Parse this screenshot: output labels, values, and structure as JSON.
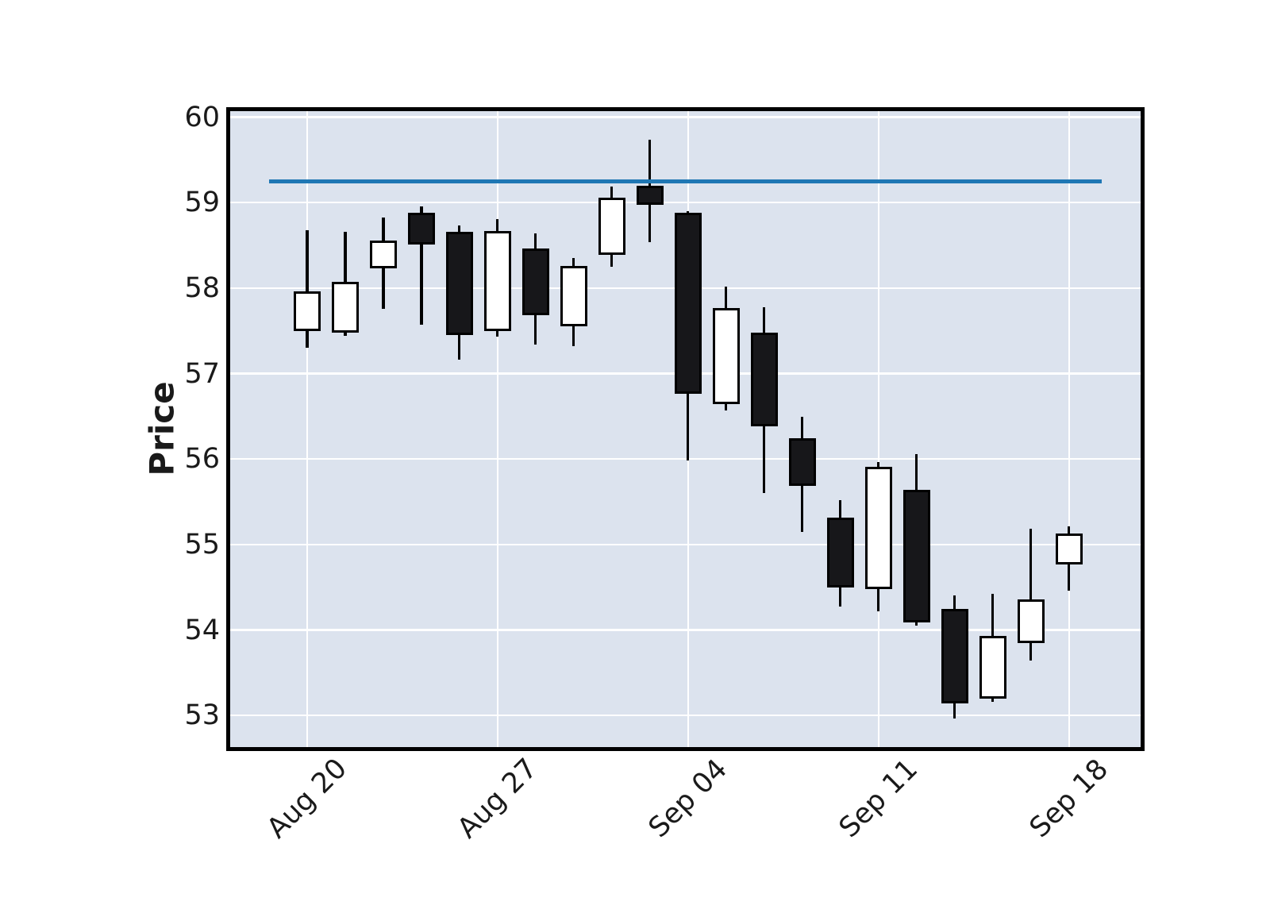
{
  "chart_data": {
    "type": "candlestick",
    "title": "",
    "xlabel": "",
    "ylabel": "Price",
    "grid": true,
    "legend": false,
    "y_ticks": [
      53,
      54,
      55,
      56,
      57,
      58,
      59,
      60
    ],
    "ylim": [
      52.63,
      60.07
    ],
    "xlim_index": [
      -2.02,
      21.88
    ],
    "x_tick_labels": [
      "Aug 20",
      "Aug 27",
      "Sep 04",
      "Sep 11",
      "Sep 18"
    ],
    "x_tick_indices": [
      0,
      5,
      10,
      15,
      20
    ],
    "candles": [
      {
        "date": "Aug 20",
        "open": 57.5,
        "high": 58.68,
        "low": 57.3,
        "close": 57.96
      },
      {
        "date": "Aug 21",
        "open": 57.48,
        "high": 58.66,
        "low": 57.44,
        "close": 58.07
      },
      {
        "date": "Aug 22",
        "open": 58.23,
        "high": 58.83,
        "low": 57.76,
        "close": 58.56
      },
      {
        "date": "Aug 23",
        "open": 58.88,
        "high": 58.96,
        "low": 57.57,
        "close": 58.51
      },
      {
        "date": "Aug 24",
        "open": 58.66,
        "high": 58.73,
        "low": 57.16,
        "close": 57.45
      },
      {
        "date": "Aug 27",
        "open": 57.5,
        "high": 58.81,
        "low": 57.43,
        "close": 58.67
      },
      {
        "date": "Aug 28",
        "open": 58.46,
        "high": 58.64,
        "low": 57.34,
        "close": 57.68
      },
      {
        "date": "Aug 29",
        "open": 57.55,
        "high": 58.35,
        "low": 57.32,
        "close": 58.26
      },
      {
        "date": "Aug 30",
        "open": 58.39,
        "high": 59.19,
        "low": 58.25,
        "close": 59.06
      },
      {
        "date": "Aug 31",
        "open": 59.2,
        "high": 59.74,
        "low": 58.54,
        "close": 58.97
      },
      {
        "date": "Sep 04",
        "open": 58.88,
        "high": 58.9,
        "low": 55.98,
        "close": 56.76
      },
      {
        "date": "Sep 05",
        "open": 56.64,
        "high": 58.02,
        "low": 56.57,
        "close": 57.77
      },
      {
        "date": "Sep 06",
        "open": 57.48,
        "high": 57.78,
        "low": 55.6,
        "close": 56.38
      },
      {
        "date": "Sep 07",
        "open": 56.24,
        "high": 56.49,
        "low": 55.15,
        "close": 55.69
      },
      {
        "date": "Sep 10",
        "open": 55.31,
        "high": 55.52,
        "low": 54.27,
        "close": 54.5
      },
      {
        "date": "Sep 11",
        "open": 54.48,
        "high": 55.96,
        "low": 54.22,
        "close": 55.91
      },
      {
        "date": "Sep 12",
        "open": 55.64,
        "high": 56.06,
        "low": 54.05,
        "close": 54.09
      },
      {
        "date": "Sep 13",
        "open": 54.25,
        "high": 54.4,
        "low": 52.96,
        "close": 53.14
      },
      {
        "date": "Sep 14",
        "open": 53.2,
        "high": 54.42,
        "low": 53.16,
        "close": 53.93
      },
      {
        "date": "Sep 17",
        "open": 53.85,
        "high": 55.18,
        "low": 53.64,
        "close": 54.36
      },
      {
        "date": "Sep 18",
        "open": 54.77,
        "high": 55.21,
        "low": 54.46,
        "close": 55.13
      }
    ],
    "hline": {
      "y": 59.25,
      "start_index": -1.0,
      "end_index": 20.85,
      "color": "#1f77b4"
    },
    "colors": {
      "up": "#ffffff",
      "down": "#17171a",
      "edge": "#000000",
      "grid": "#ffffff",
      "plot_bg": "#dce3ee",
      "figure_bg": "#ffffff",
      "text": "#1a1a1a"
    }
  }
}
